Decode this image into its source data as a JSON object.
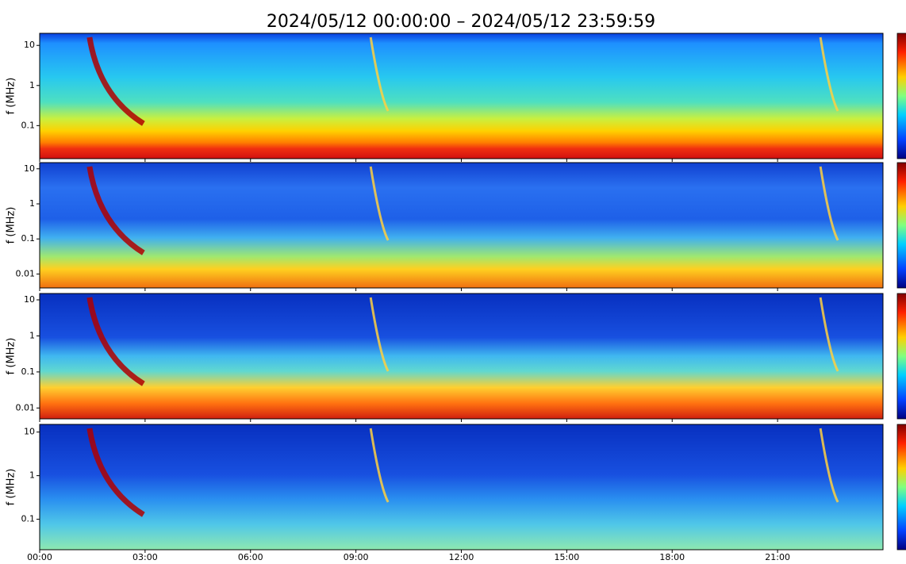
{
  "title": "2024/05/12 00:00:00 – 2024/05/12 23:59:59",
  "chart_data": [
    {
      "type": "spectrogram",
      "ylabel": "f (MHz)",
      "yscale": "log",
      "ylim": [
        0.015,
        20
      ],
      "yticks": [
        10,
        1,
        0.1
      ],
      "xlim": [
        0,
        24
      ]
    },
    {
      "type": "spectrogram",
      "ylabel": "f (MHz)",
      "yscale": "log",
      "ylim": [
        0.004,
        15
      ],
      "yticks": [
        10,
        1,
        0.1,
        0.01
      ],
      "xlim": [
        0,
        24
      ]
    },
    {
      "type": "spectrogram",
      "ylabel": "f (MHz)",
      "yscale": "log",
      "ylim": [
        0.005,
        15
      ],
      "yticks": [
        10,
        1,
        0.1,
        0.01
      ],
      "xlim": [
        0,
        24
      ]
    },
    {
      "type": "spectrogram",
      "ylabel": "f (MHz)",
      "yscale": "log",
      "ylim": [
        0.02,
        15
      ],
      "yticks": [
        10,
        1,
        0.1
      ],
      "xlim": [
        0,
        24
      ],
      "xticks": [
        {
          "value": 0,
          "label": "00:00"
        },
        {
          "value": 3,
          "label": "03:00"
        },
        {
          "value": 6,
          "label": "06:00"
        },
        {
          "value": 9,
          "label": "09:00"
        },
        {
          "value": 12,
          "label": "12:00"
        },
        {
          "value": 15,
          "label": "15:00"
        },
        {
          "value": 18,
          "label": "18:00"
        },
        {
          "value": 21,
          "label": "21:00"
        }
      ]
    }
  ]
}
